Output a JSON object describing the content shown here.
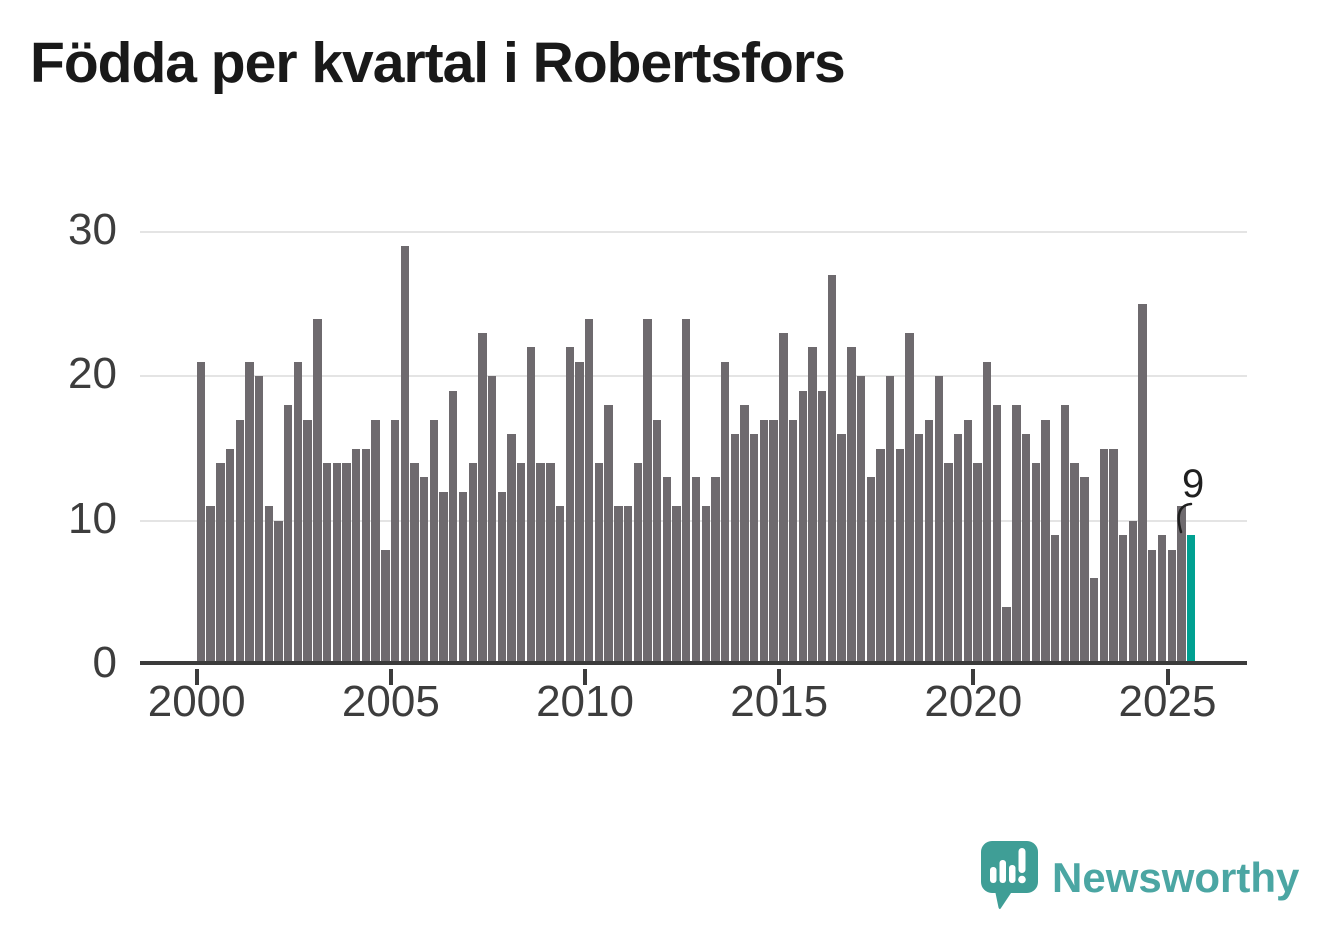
{
  "title": "Födda per kvartal i Robertsfors",
  "chart_data": {
    "type": "bar",
    "title": "Födda per kvartal i Robertsfors",
    "x_unit": "quarter",
    "ylim": [
      0,
      30
    ],
    "yticks": [
      0,
      10,
      20,
      30
    ],
    "xticks": [
      2000,
      2005,
      2010,
      2015,
      2020,
      2025
    ],
    "grid": "horizontal",
    "legend": "none",
    "series": [
      {
        "name": "Födda per kvartal",
        "by_year": [
          {
            "year": 2000,
            "values": [
              21,
              11,
              14,
              15
            ]
          },
          {
            "year": 2001,
            "values": [
              17,
              21,
              20,
              11
            ]
          },
          {
            "year": 2002,
            "values": [
              10,
              18,
              21,
              17
            ]
          },
          {
            "year": 2003,
            "values": [
              24,
              14,
              14,
              14
            ]
          },
          {
            "year": 2004,
            "values": [
              15,
              15,
              17,
              8
            ]
          },
          {
            "year": 2005,
            "values": [
              17,
              29,
              14,
              13
            ]
          },
          {
            "year": 2006,
            "values": [
              17,
              12,
              19,
              12
            ]
          },
          {
            "year": 2007,
            "values": [
              14,
              23,
              20,
              12
            ]
          },
          {
            "year": 2008,
            "values": [
              16,
              14,
              22,
              14
            ]
          },
          {
            "year": 2009,
            "values": [
              14,
              11,
              22,
              21
            ]
          },
          {
            "year": 2010,
            "values": [
              24,
              14,
              18,
              11
            ]
          },
          {
            "year": 2011,
            "values": [
              11,
              14,
              24,
              17
            ]
          },
          {
            "year": 2012,
            "values": [
              13,
              11,
              24,
              13
            ]
          },
          {
            "year": 2013,
            "values": [
              11,
              13,
              21,
              16
            ]
          },
          {
            "year": 2014,
            "values": [
              18,
              16,
              17,
              17
            ]
          },
          {
            "year": 2015,
            "values": [
              23,
              17,
              19,
              22
            ]
          },
          {
            "year": 2016,
            "values": [
              19,
              27,
              16,
              22
            ]
          },
          {
            "year": 2017,
            "values": [
              20,
              13,
              15,
              20
            ]
          },
          {
            "year": 2018,
            "values": [
              15,
              23,
              16,
              17
            ]
          },
          {
            "year": 2019,
            "values": [
              20,
              14,
              16,
              17
            ]
          },
          {
            "year": 2020,
            "values": [
              14,
              21,
              18,
              4
            ]
          },
          {
            "year": 2021,
            "values": [
              18,
              16,
              14,
              17
            ]
          },
          {
            "year": 2022,
            "values": [
              9,
              18,
              14,
              13
            ]
          },
          {
            "year": 2023,
            "values": [
              6,
              15,
              15,
              9
            ]
          },
          {
            "year": 2024,
            "values": [
              10,
              25,
              8,
              9
            ]
          },
          {
            "year": 2025,
            "values": [
              8,
              11,
              9
            ]
          }
        ]
      }
    ],
    "highlight": {
      "year": 2025,
      "quarter": 3,
      "value": 9,
      "label": "9"
    },
    "colors": {
      "bar": "#6e6a6e",
      "highlight": "#00a091",
      "axis": "#3b3b3b",
      "grid": "#e4e4e4",
      "tick_label": "#3d3d3d",
      "title": "#191919",
      "annotation": "#1f1f1f"
    }
  },
  "branding": {
    "wordmark": "Newsworthy",
    "icon": "newsworthy-speech-bubble-chart-icon",
    "color": "#4BA6A3"
  }
}
